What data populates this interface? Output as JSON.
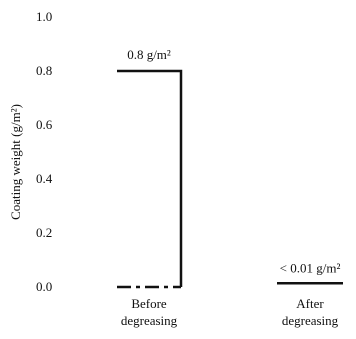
{
  "chart_data": {
    "type": "bar",
    "title": "",
    "xlabel": "",
    "ylabel": "Coating weight (g/m²)",
    "ylim": [
      0,
      1.0
    ],
    "yticks": [
      0.0,
      0.2,
      0.4,
      0.6,
      0.8,
      1.0
    ],
    "ytick_labels": [
      "0.0",
      "0.2",
      "0.4",
      "0.6",
      "0.8",
      "1.0"
    ],
    "categories": [
      "Before degreasing",
      "After degreasing"
    ],
    "values": [
      0.8,
      0.01
    ],
    "data_labels": [
      "0.8 g/m²",
      "< 0.01 g/m²"
    ],
    "grid": false,
    "legend": "none",
    "colors": {
      "bar_outline": "#111111",
      "text": "#111111",
      "background": "#ffffff"
    }
  }
}
